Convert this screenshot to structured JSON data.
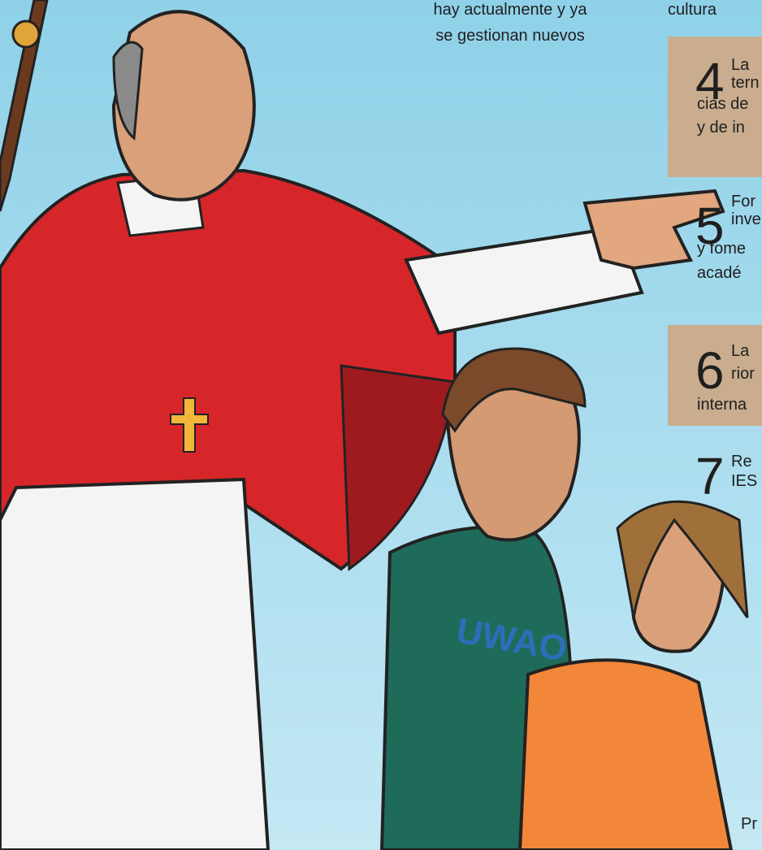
{
  "top_text": {
    "lines": [
      "hay actualmente y ya",
      "se gestionan nuevos"
    ]
  },
  "side_top": "cultura",
  "items": [
    {
      "number": "4",
      "head": [
        "La",
        "tern"
      ],
      "lines": [
        "cias de",
        "y de in"
      ]
    },
    {
      "number": "5",
      "head": [
        "For",
        "inve"
      ],
      "lines": [
        "y fome",
        "acadé"
      ]
    },
    {
      "number": "6",
      "head": [
        "La",
        "rior"
      ],
      "lines": [
        "interna"
      ]
    },
    {
      "number": "7",
      "head": [
        "Re",
        "IES"
      ],
      "lines": []
    }
  ],
  "footer": "Pr"
}
